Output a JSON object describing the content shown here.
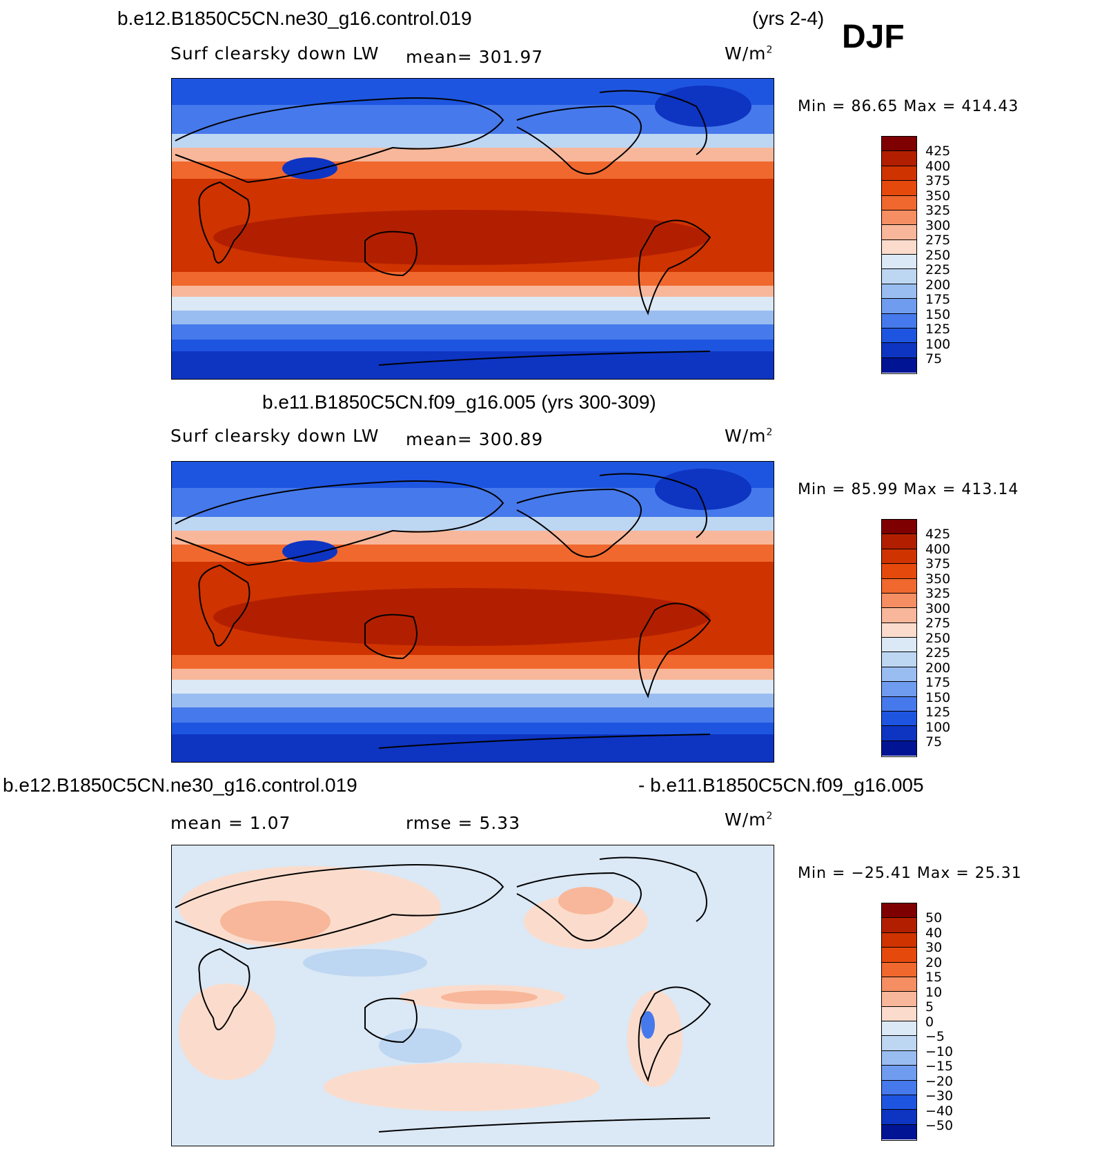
{
  "header": {
    "case1": "b.e12.B1850C5CN.ne30_g16.control.019",
    "years1": "(yrs 2-4)",
    "season": "DJF"
  },
  "panels": [
    {
      "title": "",
      "variable": "Surf clearsky down LW",
      "mean_label": "mean= 301.97",
      "units": "W/m",
      "units_sup": "2",
      "minmax": "Min =   86.65 Max = 414.43",
      "colorbar_labels": [
        "425",
        "400",
        "375",
        "350",
        "325",
        "300",
        "275",
        "250",
        "225",
        "200",
        "175",
        "150",
        "125",
        "100",
        "75"
      ],
      "colorbar_colors": [
        "#7f0000",
        "#b21f00",
        "#cf3300",
        "#e5490b",
        "#f0682e",
        "#f58e62",
        "#f8b79a",
        "#fbdccc",
        "#dbe8f5",
        "#bdd6f2",
        "#99bdf0",
        "#6f9cef",
        "#4679eb",
        "#1e55e0",
        "#0e34c2",
        "#001494"
      ]
    },
    {
      "title": "b.e11.B1850C5CN.f09_g16.005 (yrs 300-309)",
      "variable": "Surf clearsky down LW",
      "mean_label": "mean= 300.89",
      "units": "W/m",
      "units_sup": "2",
      "minmax": "Min =   85.99 Max = 413.14",
      "colorbar_labels": [
        "425",
        "400",
        "375",
        "350",
        "325",
        "300",
        "275",
        "250",
        "225",
        "200",
        "175",
        "150",
        "125",
        "100",
        "75"
      ],
      "colorbar_colors": [
        "#7f0000",
        "#b21f00",
        "#cf3300",
        "#e5490b",
        "#f0682e",
        "#f58e62",
        "#f8b79a",
        "#fbdccc",
        "#dbe8f5",
        "#bdd6f2",
        "#99bdf0",
        "#6f9cef",
        "#4679eb",
        "#1e55e0",
        "#0e34c2",
        "#001494"
      ]
    },
    {
      "title_left": "b.e12.B1850C5CN.ne30_g16.control.019",
      "title_right": "- b.e11.B1850C5CN.f09_g16.005",
      "mean_label": "mean =    1.07",
      "rmse_label": "rmse =    5.33",
      "units": "W/m",
      "units_sup": "2",
      "minmax": "Min = −25.41 Max =   25.31",
      "colorbar_labels": [
        "50",
        "40",
        "30",
        "20",
        "15",
        "10",
        "5",
        "0",
        "−5",
        "−10",
        "−15",
        "−20",
        "−30",
        "−40",
        "−50"
      ],
      "colorbar_colors": [
        "#7f0000",
        "#b21f00",
        "#cf3300",
        "#e5490b",
        "#f0682e",
        "#f58e62",
        "#f8b79a",
        "#fbdccc",
        "#dbe8f5",
        "#bdd6f2",
        "#99bdf0",
        "#6f9cef",
        "#4679eb",
        "#1e55e0",
        "#0e34c2",
        "#001494"
      ]
    }
  ]
}
